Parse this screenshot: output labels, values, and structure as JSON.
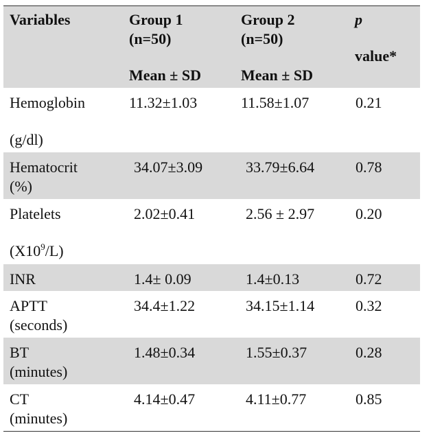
{
  "table": {
    "header": {
      "variables": "Variables",
      "group1": [
        "Group 1",
        "(n=50)",
        "Mean ± SD"
      ],
      "group2": [
        "Group 2",
        "(n=50)",
        "Mean ± SD"
      ],
      "p": [
        "p",
        "value*"
      ]
    },
    "rows": [
      {
        "variable": [
          "Hemoglobin",
          "(g/dl)"
        ],
        "group1": "11.32±1.03",
        "group2": "11.58±1.07",
        "p": "0.21"
      },
      {
        "variable": [
          "Hematocrit",
          "(%)"
        ],
        "group1": "34.07±3.09",
        "group2": "33.79±6.64",
        "p": "0.78"
      },
      {
        "variable": [
          "Platelets"
        ],
        "unit_parts": [
          "(X10",
          "9",
          "/L)"
        ],
        "group1": "2.02±0.41",
        "group2": "2.56 ± 2.97",
        "p": "0.20"
      },
      {
        "variable": [
          "INR"
        ],
        "group1": "1.4± 0.09",
        "group2": "1.4±0.13",
        "p": "0.72"
      },
      {
        "variable": [
          "APTT",
          "(seconds)"
        ],
        "group1": "34.4±1.22",
        "group2": "34.15±1.14",
        "p": "0.32"
      },
      {
        "variable": [
          "BT",
          "(minutes)"
        ],
        "group1": "1.48±0.34",
        "group2": "1.55±0.37",
        "p": "0.28"
      },
      {
        "variable": [
          "CT",
          "(minutes)"
        ],
        "group1": "4.14±0.47",
        "group2": "4.11±0.77",
        "p": "0.85"
      }
    ]
  }
}
